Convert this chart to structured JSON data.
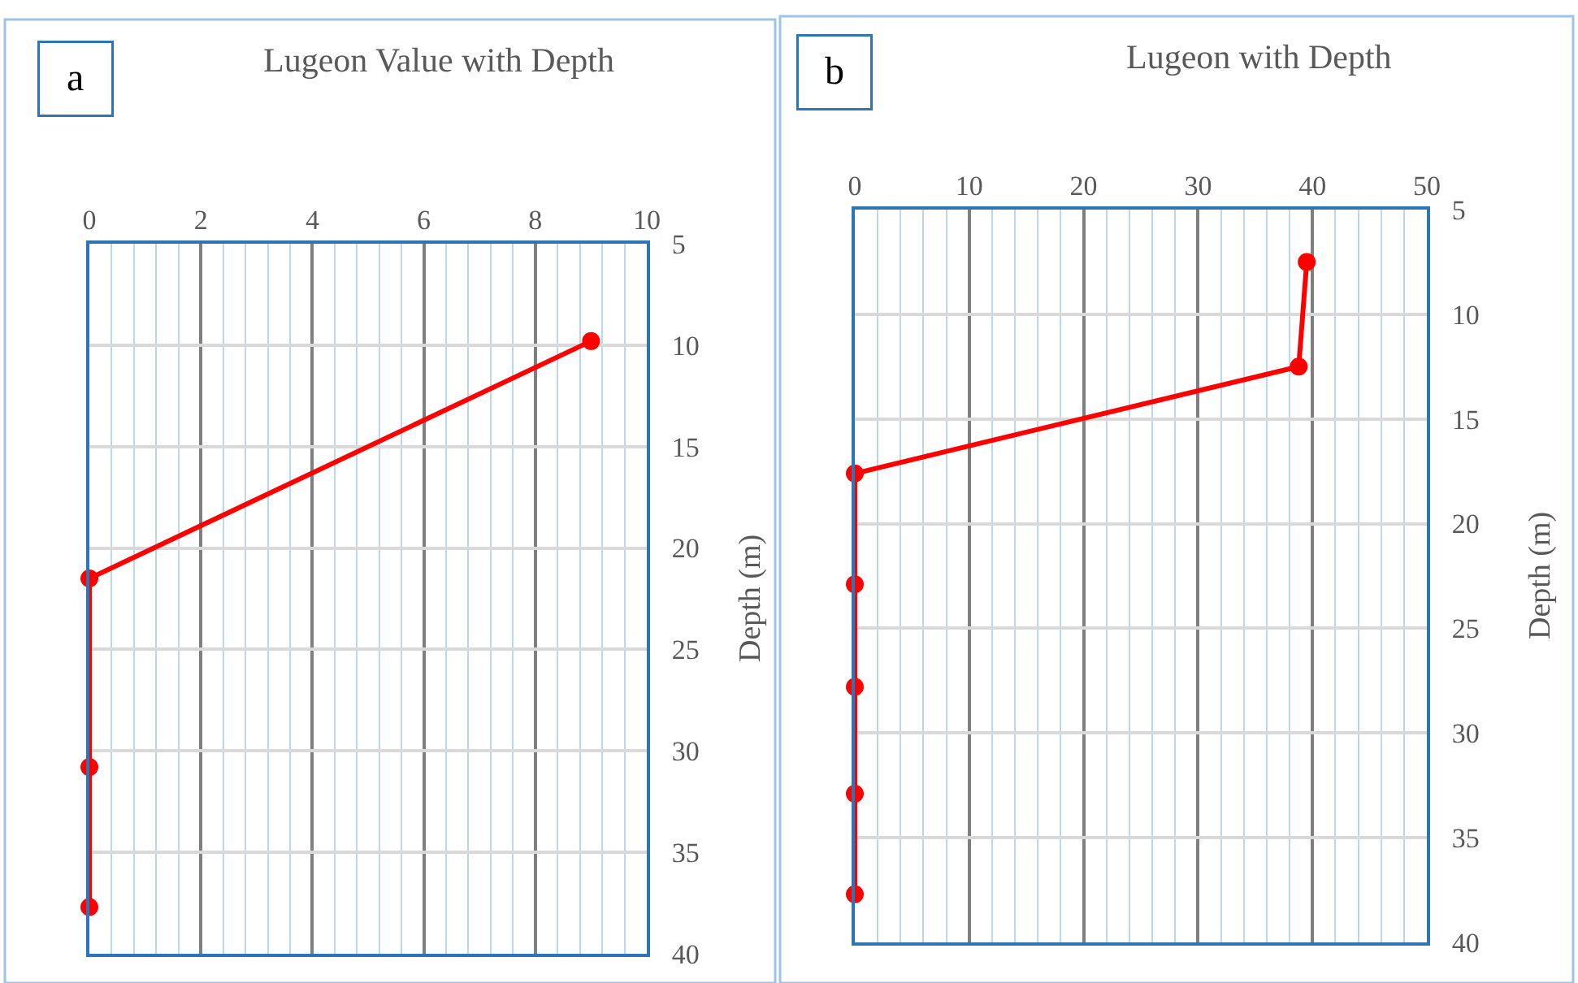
{
  "chart_data": [
    {
      "type": "line",
      "title": "Lugeon Value with Depth",
      "ylabel": "Depth (m)",
      "annotations": [
        "a"
      ],
      "marker": "circle",
      "line_style": "solid",
      "grid": true,
      "series": [
        {
          "color": "#ff0000",
          "x": [
            9,
            0,
            0,
            0
          ],
          "values": [
            9.8,
            21.5,
            30.8,
            37.7
          ]
        }
      ],
      "xlim": [
        0,
        10
      ],
      "xticks": [
        0,
        {
          "value": 0.4,
          "label": null
        },
        {
          "value": 0.8,
          "label": null
        },
        {
          "value": 1.2,
          "label": null
        },
        {
          "value": 1.6,
          "label": null
        },
        2,
        {
          "value": 2.4,
          "label": null
        },
        {
          "value": 2.8,
          "label": null
        },
        {
          "value": 3.2,
          "label": null
        },
        {
          "value": 3.6,
          "label": null
        },
        4,
        {
          "value": 4.4,
          "label": null
        },
        {
          "value": 4.8,
          "label": null
        },
        {
          "value": 5.2,
          "label": null
        },
        {
          "value": 5.6,
          "label": null
        },
        6,
        {
          "value": 6.4,
          "label": null
        },
        {
          "value": 6.8,
          "label": null
        },
        {
          "value": 7.2,
          "label": null
        },
        {
          "value": 7.6,
          "label": null
        },
        8,
        {
          "value": 8.4,
          "label": null
        },
        {
          "value": 8.8,
          "label": null
        },
        {
          "value": 9.2,
          "label": null
        },
        {
          "value": 9.6,
          "label": null
        },
        10
      ],
      "ylim": [
        40,
        5
      ],
      "yticks": [
        5,
        10,
        15,
        20,
        25,
        30,
        35,
        40
      ]
    },
    {
      "type": "line",
      "title": "Lugeon with Depth",
      "ylabel": "Depth (m)",
      "annotations": [
        "b"
      ],
      "marker": "circle",
      "line_style": "solid",
      "grid": true,
      "series": [
        {
          "color": "#ff0000",
          "x": [
            39.5,
            38.8,
            0,
            0,
            0,
            0,
            0
          ],
          "values": [
            7.5,
            12.5,
            17.6,
            22.9,
            27.8,
            32.9,
            37.7
          ]
        }
      ],
      "xlim": [
        0,
        50
      ],
      "xticks": [
        0,
        {
          "value": 2,
          "label": null
        },
        {
          "value": 4,
          "label": null
        },
        {
          "value": 6,
          "label": null
        },
        {
          "value": 8,
          "label": null
        },
        10,
        {
          "value": 12,
          "label": null
        },
        {
          "value": 14,
          "label": null
        },
        {
          "value": 16,
          "label": null
        },
        {
          "value": 18,
          "label": null
        },
        20,
        {
          "value": 22,
          "label": null
        },
        {
          "value": 24,
          "label": null
        },
        {
          "value": 26,
          "label": null
        },
        {
          "value": 28,
          "label": null
        },
        30,
        {
          "value": 32,
          "label": null
        },
        {
          "value": 34,
          "label": null
        },
        {
          "value": 36,
          "label": null
        },
        {
          "value": 38,
          "label": null
        },
        40,
        {
          "value": 42,
          "label": null
        },
        {
          "value": 44,
          "label": null
        },
        {
          "value": 46,
          "label": null
        },
        {
          "value": 48,
          "label": null
        },
        50
      ],
      "ylim": [
        40,
        5
      ],
      "yticks": [
        5,
        10,
        15,
        20,
        25,
        30,
        35,
        40
      ]
    }
  ]
}
